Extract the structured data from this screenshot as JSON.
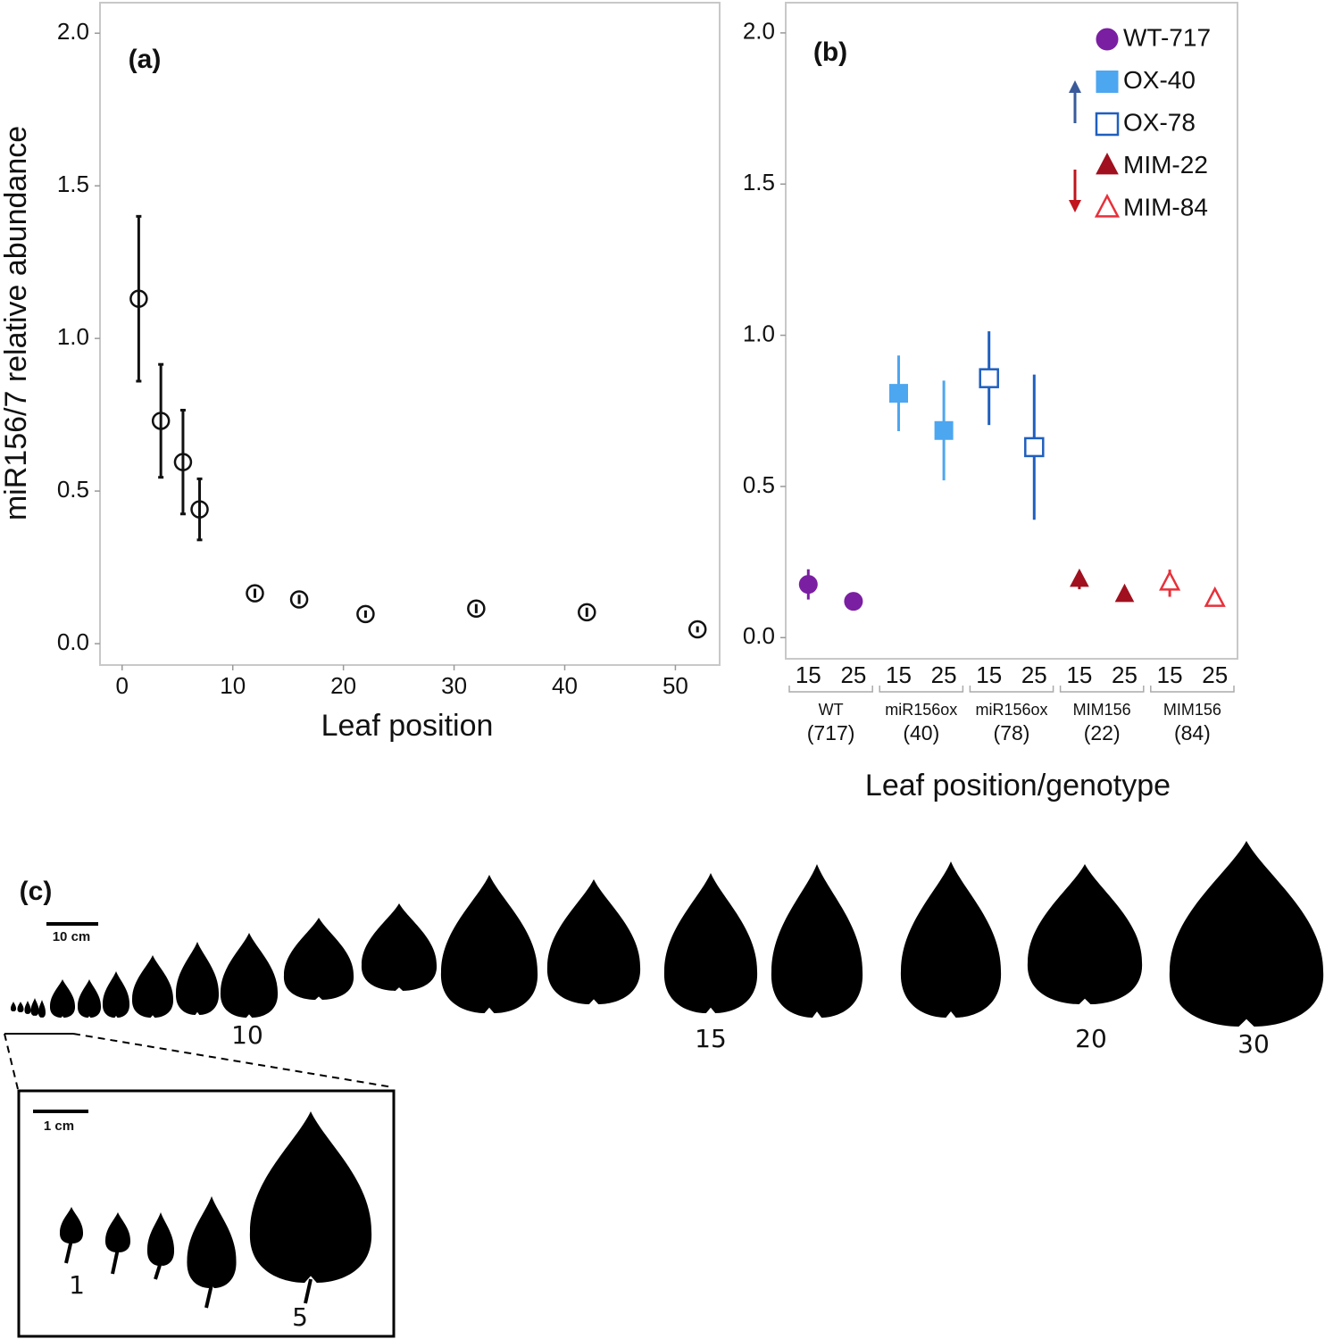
{
  "chart_data": [
    {
      "type": "scatter",
      "panel_label": "(a)",
      "x_label": "Leaf position",
      "y_label": "miR156/7 relative abundance",
      "x": [
        1.5,
        3.5,
        5.5,
        7,
        12,
        16,
        22,
        32,
        42,
        52
      ],
      "values": [
        1.13,
        0.73,
        0.595,
        0.44,
        0.165,
        0.145,
        0.097,
        0.115,
        0.103,
        0.047
      ],
      "errors": [
        0.27,
        0.185,
        0.17,
        0.1,
        0.015,
        0.015,
        0.012,
        0.015,
        0.015,
        0.01
      ],
      "color": "#111111",
      "marker": "circle",
      "filled": false,
      "xlim": [
        -2,
        54
      ],
      "xticks": [
        0,
        10,
        20,
        30,
        40,
        50
      ],
      "ylim": [
        -0.07,
        2.1
      ],
      "yticks": [
        {
          "value": 0,
          "label": "0.0"
        },
        {
          "value": 0.5,
          "label": "0.5"
        },
        {
          "value": 1,
          "label": "1.0"
        },
        {
          "value": 1.5,
          "label": "1.5"
        },
        {
          "value": 2,
          "label": "2.0"
        }
      ]
    },
    {
      "type": "dot",
      "panel_label": "(b)",
      "x_label": "Leaf position/genotype",
      "categories": [
        "15",
        "25",
        "15",
        "25",
        "15",
        "25",
        "15",
        "25",
        "15",
        "25"
      ],
      "groups": [
        {
          "name": "WT",
          "sub": "(717)"
        },
        {
          "name": "miR156ox",
          "sub": "(40)"
        },
        {
          "name": "miR156ox",
          "sub": "(78)"
        },
        {
          "name": "MIM156",
          "sub": "(22)"
        },
        {
          "name": "MIM156",
          "sub": "(84)"
        }
      ],
      "series": [
        {
          "name": "WT-717",
          "color": "#7b1fa2",
          "marker": "circle",
          "filled": true,
          "values": [
            0.176,
            0.12,
            null,
            null,
            null,
            null,
            null,
            null,
            null,
            null
          ],
          "errors": [
            0.05,
            0.03,
            null,
            null,
            null,
            null,
            null,
            null,
            null,
            null
          ]
        },
        {
          "name": "OX-40",
          "color": "#4da6f0",
          "marker": "square",
          "filled": true,
          "values": [
            null,
            null,
            0.808,
            0.685,
            null,
            null,
            null,
            null,
            null,
            null
          ],
          "errors": [
            null,
            null,
            0.125,
            0.165,
            null,
            null,
            null,
            null,
            null,
            null
          ]
        },
        {
          "name": "OX-78",
          "color": "#1f5fbf",
          "marker": "square",
          "filled": false,
          "values": [
            null,
            null,
            null,
            null,
            0.858,
            0.63,
            null,
            null,
            null,
            null
          ],
          "errors": [
            null,
            null,
            null,
            null,
            0.155,
            0.24,
            null,
            null,
            null,
            null
          ]
        },
        {
          "name": "MIM-22",
          "color": "#a0101e",
          "marker": "triangle",
          "filled": true,
          "values": [
            null,
            null,
            null,
            null,
            null,
            null,
            0.19,
            0.14,
            null,
            null
          ],
          "errors": [
            null,
            null,
            null,
            null,
            null,
            null,
            0.03,
            0.02,
            null,
            null
          ]
        },
        {
          "name": "MIM-84",
          "color": "#e8303a",
          "marker": "triangle",
          "filled": false,
          "values": [
            null,
            null,
            null,
            null,
            null,
            null,
            null,
            null,
            0.18,
            0.126
          ],
          "errors": [
            null,
            null,
            null,
            null,
            null,
            null,
            null,
            null,
            0.045,
            0.02
          ]
        }
      ],
      "legend": "top-right",
      "ylim": [
        -0.07,
        2.1
      ],
      "yticks": [
        {
          "value": 0,
          "label": "0.0"
        },
        {
          "value": 0.5,
          "label": "0.5"
        },
        {
          "value": 1,
          "label": "1.0"
        },
        {
          "value": 1.5,
          "label": "1.5"
        },
        {
          "value": 2,
          "label": "2.0"
        }
      ]
    }
  ],
  "panel_c": {
    "label": "(c)",
    "scale_main": "10 cm",
    "scale_inset": "1 cm",
    "leaf_numbers": [
      "10",
      "15",
      "20",
      "30"
    ],
    "inset_numbers": [
      "1",
      "5"
    ]
  }
}
